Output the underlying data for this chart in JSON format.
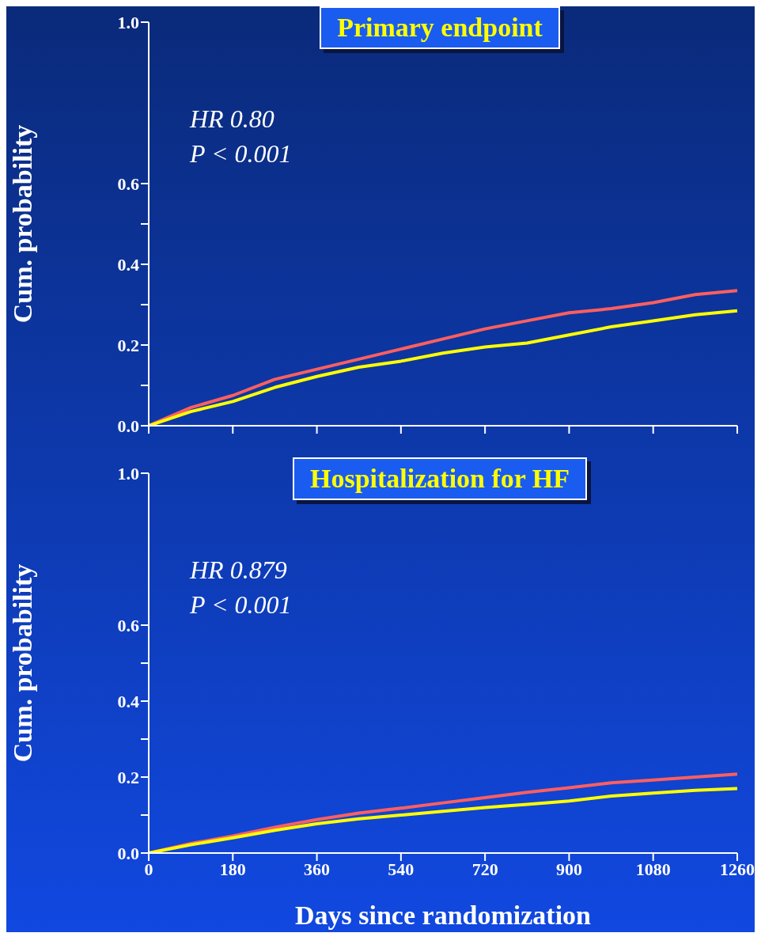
{
  "chart_data": [
    {
      "type": "line",
      "title": "Primary endpoint",
      "ylabel": "Cum. probability",
      "annotations": [
        "HR 0.80",
        "P < 0.001"
      ],
      "x": [
        0,
        90,
        180,
        270,
        360,
        450,
        540,
        630,
        720,
        810,
        900,
        990,
        1080,
        1170,
        1260
      ],
      "series": [
        {
          "color": "#ff5f5f",
          "values": [
            0,
            0.045,
            0.075,
            0.115,
            0.14,
            0.165,
            0.19,
            0.215,
            0.24,
            0.26,
            0.28,
            0.29,
            0.305,
            0.325,
            0.335
          ]
        },
        {
          "color": "#ffff00",
          "values": [
            0,
            0.035,
            0.06,
            0.095,
            0.122,
            0.145,
            0.16,
            0.18,
            0.195,
            0.205,
            0.225,
            0.245,
            0.26,
            0.275,
            0.285
          ]
        }
      ],
      "xlim": [
        0,
        1260
      ],
      "xticks": [
        0,
        180,
        360,
        540,
        720,
        900,
        1080,
        1260
      ],
      "ylim": [
        0,
        1
      ],
      "yticks": [
        {
          "value": 0,
          "label": "0.0"
        },
        {
          "value": 0.1,
          "label": null
        },
        {
          "value": 0.2,
          "label": "0.2"
        },
        {
          "value": 0.3,
          "label": null
        },
        {
          "value": 0.4,
          "label": "0.4"
        },
        {
          "value": 0.5,
          "label": null
        },
        {
          "value": 0.6,
          "label": "0.6"
        },
        {
          "value": 1,
          "label": "1.0"
        }
      ],
      "tick_labels": "y",
      "marker": "none",
      "line_style": "solid"
    },
    {
      "type": "line",
      "title": "Hospitalization for HF",
      "ylabel": "Cum. probability",
      "xlabel": "Days since randomization",
      "annotations": [
        "HR 0.879",
        "P < 0.001"
      ],
      "x": [
        0,
        90,
        180,
        270,
        360,
        450,
        540,
        630,
        720,
        810,
        900,
        990,
        1080,
        1170,
        1260
      ],
      "series": [
        {
          "color": "#ff5f5f",
          "values": [
            0,
            0.025,
            0.045,
            0.068,
            0.088,
            0.105,
            0.118,
            0.132,
            0.146,
            0.16,
            0.172,
            0.185,
            0.192,
            0.2,
            0.208
          ]
        },
        {
          "color": "#ffff00",
          "values": [
            0,
            0.022,
            0.04,
            0.06,
            0.077,
            0.09,
            0.1,
            0.11,
            0.12,
            0.128,
            0.137,
            0.15,
            0.158,
            0.165,
            0.17
          ]
        }
      ],
      "xlim": [
        0,
        1260
      ],
      "xticks": [
        0,
        180,
        360,
        540,
        720,
        900,
        1080,
        1260
      ],
      "ylim": [
        0,
        1
      ],
      "yticks": [
        {
          "value": 0,
          "label": "0.0"
        },
        {
          "value": 0.1,
          "label": null
        },
        {
          "value": 0.2,
          "label": "0.2"
        },
        {
          "value": 0.3,
          "label": null
        },
        {
          "value": 0.4,
          "label": "0.4"
        },
        {
          "value": 0.5,
          "label": null
        },
        {
          "value": 0.6,
          "label": "0.6"
        },
        {
          "value": 1,
          "label": "1.0"
        }
      ],
      "marker": "none",
      "line_style": "solid"
    }
  ]
}
